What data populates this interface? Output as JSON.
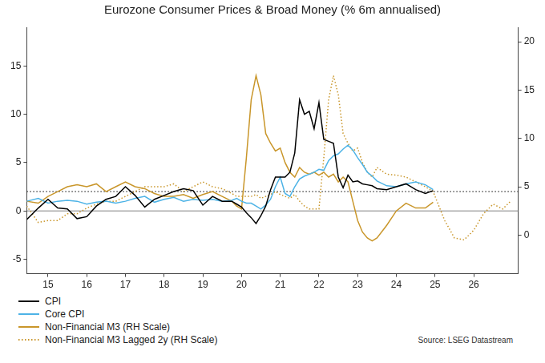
{
  "chart_data": {
    "type": "line",
    "title": "Eurozone Consumer Prices & Broad Money (% 6m annualised)",
    "source": "Source: LSEG Datastream",
    "x": [
      2014.45,
      2014.75,
      2015,
      2015.25,
      2015.5,
      2015.75,
      2016,
      2016.25,
      2016.5,
      2016.75,
      2017,
      2017.25,
      2017.5,
      2017.75,
      2018,
      2018.25,
      2018.5,
      2018.75,
      2019,
      2019.25,
      2019.5,
      2019.75,
      2019.875,
      2020,
      2020.125,
      2020.25,
      2020.375,
      2020.5,
      2020.625,
      2020.75,
      2020.875,
      2021,
      2021.125,
      2021.25,
      2021.375,
      2021.5,
      2021.625,
      2021.75,
      2021.875,
      2022,
      2022.125,
      2022.25,
      2022.375,
      2022.5,
      2022.625,
      2022.75,
      2022.875,
      2023,
      2023.125,
      2023.25,
      2023.375,
      2023.5,
      2023.75,
      2024,
      2024.25,
      2024.5,
      2024.75,
      2024.95,
      2025.25,
      2025.5,
      2025.75,
      2026,
      2026.25,
      2026.5,
      2026.75,
      2026.95
    ],
    "xlim": [
      2014.45,
      2027.15
    ],
    "xticks": [
      {
        "value": 2015,
        "label": "15"
      },
      {
        "value": 2016,
        "label": "16"
      },
      {
        "value": 2017,
        "label": "17"
      },
      {
        "value": 2018,
        "label": "18"
      },
      {
        "value": 2019,
        "label": "19"
      },
      {
        "value": 2020,
        "label": "20"
      },
      {
        "value": 2021,
        "label": "21"
      },
      {
        "value": 2022,
        "label": "22"
      },
      {
        "value": 2023,
        "label": "23"
      },
      {
        "value": 2024,
        "label": "24"
      },
      {
        "value": 2025,
        "label": "25"
      },
      {
        "value": 2026,
        "label": "26"
      }
    ],
    "ylim": [
      -6.5,
      19
    ],
    "yticks": [
      -5,
      0,
      5,
      10,
      15
    ],
    "y2lim": [
      -4,
      21.5
    ],
    "y2ticks": [
      0,
      5,
      10,
      15,
      20
    ],
    "grid": false,
    "legend": "bottom",
    "reference_lines": [
      {
        "value": 0,
        "axis": "y",
        "color": "#808080",
        "line_style": "solid"
      },
      {
        "value": 2,
        "axis": "y",
        "color": "#000000",
        "line_style": "dotted"
      }
    ],
    "series": [
      {
        "name": "CPI",
        "color": "#000000",
        "line_style": "solid",
        "axis": "y",
        "values": [
          -0.9,
          0.3,
          1.2,
          0.3,
          0.2,
          -0.8,
          -0.6,
          0.5,
          1.2,
          1.5,
          2.5,
          1.6,
          0.4,
          1.2,
          1.6,
          2.0,
          2.3,
          2.1,
          0.6,
          1.5,
          1.0,
          1.0,
          0.7,
          0.4,
          -0.2,
          -0.7,
          -1.3,
          -0.5,
          0.5,
          2.2,
          3.5,
          3.5,
          3.5,
          4.0,
          6.0,
          11.5,
          10.0,
          10.3,
          8.5,
          11.2,
          7.4,
          7.2,
          7.0,
          3.5,
          2.4,
          3.7,
          3.0,
          3.1,
          2.8,
          2.7,
          2.6,
          2.3,
          2.2,
          2.5,
          2.8,
          2.2,
          1.8,
          2.1,
          null,
          null,
          null,
          null,
          null,
          null,
          null,
          null
        ]
      },
      {
        "name": "Core CPI",
        "color": "#4db3e6",
        "line_style": "solid",
        "axis": "y",
        "values": [
          1.0,
          1.3,
          0.8,
          1.0,
          1.1,
          1.0,
          0.7,
          0.9,
          1.0,
          0.8,
          1.0,
          1.3,
          1.5,
          0.9,
          1.2,
          1.4,
          1.0,
          1.2,
          1.1,
          1.2,
          1.0,
          1.1,
          1.3,
          1.0,
          0.8,
          0.8,
          0.5,
          0.2,
          0.6,
          1.2,
          2.5,
          3.5,
          1.8,
          1.5,
          2.5,
          3.3,
          3.6,
          3.8,
          4.0,
          4.3,
          4.2,
          5.2,
          5.7,
          5.9,
          6.4,
          6.8,
          6.3,
          5.5,
          4.8,
          4.0,
          3.6,
          3.1,
          2.6,
          2.5,
          2.8,
          3.0,
          2.7,
          2.2,
          null,
          null,
          null,
          null,
          null,
          null,
          null,
          null
        ]
      },
      {
        "name": "Non-Financial M3 (RH Scale)",
        "color": "#c9962a",
        "line_style": "solid",
        "axis": "y2",
        "values": [
          3.5,
          3.3,
          4.0,
          4.5,
          5.0,
          5.2,
          5.0,
          5.3,
          4.5,
          5.0,
          5.5,
          5.0,
          4.8,
          4.3,
          4.0,
          4.0,
          4.2,
          3.8,
          4.2,
          4.5,
          4.0,
          3.5,
          3.0,
          2.7,
          8.0,
          14.0,
          16.5,
          14.5,
          10.5,
          9.5,
          8.7,
          9.0,
          7.5,
          6.5,
          6.0,
          7.0,
          6.5,
          6.3,
          6.5,
          6.2,
          6.5,
          6.0,
          6.3,
          5.5,
          6.0,
          5.5,
          3.5,
          1.5,
          0.3,
          -0.3,
          -0.6,
          -0.3,
          1.0,
          2.5,
          3.3,
          2.8,
          2.8,
          3.4,
          null,
          null,
          null,
          null,
          null,
          null,
          null,
          null
        ]
      },
      {
        "name": "Non-Financial M3 Lagged 2y (RH Scale)",
        "color": "#c9962a",
        "line_style": "dotted",
        "axis": "y2",
        "values": [
          3.0,
          1.3,
          1.5,
          1.5,
          2.2,
          2.2,
          2.8,
          3.2,
          3.5,
          3.5,
          4.0,
          4.5,
          5.0,
          5.0,
          5.0,
          5.3,
          4.5,
          5.0,
          5.5,
          5.0,
          4.8,
          4.3,
          4.0,
          4.0,
          4.0,
          4.0,
          4.2,
          3.8,
          4.0,
          4.2,
          4.5,
          4.2,
          4.0,
          3.8,
          4.2,
          3.5,
          3.0,
          2.7,
          2.7,
          2.7,
          8.0,
          14.0,
          16.5,
          14.5,
          10.5,
          9.5,
          8.7,
          9.0,
          7.5,
          6.5,
          6.0,
          7.0,
          6.3,
          6.2,
          6.0,
          5.5,
          5.0,
          4.5,
          1.5,
          -0.3,
          -0.5,
          0.5,
          2.2,
          3.2,
          2.7,
          3.5
        ]
      }
    ]
  }
}
